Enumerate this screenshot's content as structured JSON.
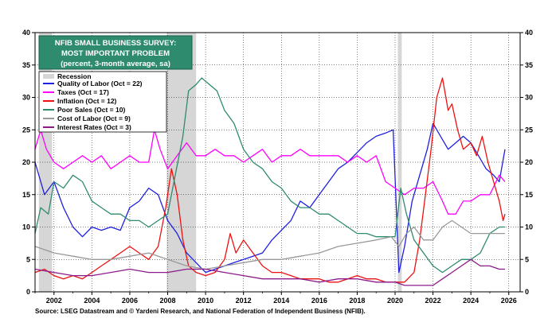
{
  "chart_data": {
    "type": "line",
    "title_lines": [
      "NFIB SMALL BUSINESS SURVEY:",
      "MOST IMPORTANT PROBLEM",
      "(percent, 3-month average, sa)"
    ],
    "source": "Source: LSEG Datastream and © Yardeni Research, and National Federation of Independent Business (NFIB).",
    "xlim": [
      2001.0,
      2026.6
    ],
    "ylim": [
      0,
      40
    ],
    "x_ticks": [
      2002,
      2004,
      2006,
      2008,
      2010,
      2012,
      2014,
      2016,
      2018,
      2020,
      2022,
      2024,
      2026
    ],
    "x_tick_labels": [
      "2002",
      "2004",
      "2006",
      "2008",
      "2010",
      "2012",
      "2014",
      "2016",
      "2018",
      "2020",
      "2022",
      "2024",
      "2026"
    ],
    "y_ticks": [
      0,
      5,
      10,
      15,
      20,
      25,
      30,
      35,
      40
    ],
    "y_tick_labels": [
      "0",
      "5",
      "10",
      "15",
      "20",
      "25",
      "30",
      "35",
      "40"
    ],
    "recession_label": "Recession",
    "recessions": [
      [
        2001.2,
        2001.9
      ],
      [
        2007.95,
        2009.5
      ],
      [
        2020.15,
        2020.35
      ]
    ],
    "series": [
      {
        "name": "Quality of Labor (Oct = 22)",
        "color": "#1f1fe0",
        "x": [
          2001.0,
          2001.5,
          2002.0,
          2002.5,
          2003.0,
          2003.5,
          2004.0,
          2004.5,
          2005.0,
          2005.5,
          2006.0,
          2006.5,
          2007.0,
          2007.5,
          2008.0,
          2008.5,
          2009.0,
          2009.5,
          2010.0,
          2010.5,
          2011.0,
          2011.5,
          2012.0,
          2012.5,
          2013.0,
          2013.5,
          2014.0,
          2014.5,
          2015.0,
          2015.5,
          2016.0,
          2016.5,
          2017.0,
          2017.5,
          2018.0,
          2018.5,
          2019.0,
          2019.5,
          2019.9,
          2020.2,
          2020.5,
          2020.9,
          2021.3,
          2021.7,
          2022.0,
          2022.4,
          2022.8,
          2023.2,
          2023.6,
          2024.0,
          2024.4,
          2024.8,
          2025.2,
          2025.5,
          2025.8
        ],
        "y": [
          20,
          15,
          17,
          13,
          10,
          8.5,
          10,
          9.5,
          10,
          9.5,
          13,
          14,
          16,
          15,
          11,
          9,
          6,
          4.5,
          3,
          3.5,
          4,
          4.5,
          5,
          5.5,
          6,
          8,
          9.5,
          11,
          14,
          13,
          15,
          17,
          19,
          20,
          21.5,
          23,
          24,
          24.5,
          25,
          3,
          7,
          14,
          18,
          22,
          26,
          24,
          22,
          23,
          24,
          23,
          21,
          19,
          18,
          17,
          22
        ]
      },
      {
        "name": "Taxes (Oct = 17)",
        "color": "#ff00ff",
        "x": [
          2001.0,
          2001.3,
          2001.6,
          2002.0,
          2002.5,
          2003.0,
          2003.5,
          2004.0,
          2004.5,
          2005.0,
          2005.5,
          2006.0,
          2006.5,
          2007.0,
          2007.3,
          2007.6,
          2008.0,
          2008.5,
          2009.0,
          2009.5,
          2010.0,
          2010.5,
          2011.0,
          2011.5,
          2012.0,
          2012.5,
          2013.0,
          2013.5,
          2014.0,
          2014.5,
          2015.0,
          2015.5,
          2016.0,
          2016.5,
          2017.0,
          2017.5,
          2018.0,
          2018.5,
          2019.0,
          2019.5,
          2020.0,
          2020.5,
          2021.0,
          2021.5,
          2022.0,
          2022.5,
          2022.8,
          2023.2,
          2023.6,
          2024.0,
          2024.5,
          2025.0,
          2025.5,
          2025.8
        ],
        "y": [
          22,
          25,
          22,
          20,
          19,
          20,
          21,
          20,
          21,
          19,
          20,
          21,
          20,
          20,
          25,
          22,
          19,
          21,
          23,
          21,
          21,
          22,
          21,
          21,
          20,
          21,
          22,
          20,
          21,
          21,
          22,
          21,
          21,
          21,
          21,
          20,
          21,
          20,
          21,
          17,
          16,
          15,
          16,
          16,
          17,
          14,
          12,
          12,
          14,
          14,
          15,
          15,
          18,
          17
        ]
      },
      {
        "name": "Inflation (Oct = 12)",
        "color": "#ee1111",
        "x": [
          2001.0,
          2001.5,
          2002.0,
          2002.5,
          2003.0,
          2003.5,
          2004.0,
          2004.5,
          2005.0,
          2005.5,
          2006.0,
          2006.5,
          2007.0,
          2007.5,
          2007.9,
          2008.2,
          2008.5,
          2008.8,
          2009.1,
          2009.5,
          2010.0,
          2010.5,
          2011.0,
          2011.3,
          2011.6,
          2012.0,
          2012.5,
          2013.0,
          2013.5,
          2014.0,
          2014.5,
          2015.0,
          2015.5,
          2016.0,
          2016.5,
          2017.0,
          2017.5,
          2018.0,
          2018.5,
          2019.0,
          2019.5,
          2020.0,
          2020.5,
          2021.0,
          2021.3,
          2021.6,
          2021.9,
          2022.2,
          2022.5,
          2022.8,
          2023.0,
          2023.3,
          2023.6,
          2024.0,
          2024.3,
          2024.6,
          2024.9,
          2025.2,
          2025.5,
          2025.7,
          2025.8
        ],
        "y": [
          3,
          3.5,
          2.5,
          2,
          2.5,
          2,
          3,
          4,
          5,
          6,
          7,
          6,
          5,
          7,
          13,
          19,
          15,
          8,
          4,
          3,
          2.5,
          3,
          5,
          9,
          6,
          8,
          6,
          4,
          3,
          3,
          2.5,
          2,
          2,
          2,
          1.5,
          1.5,
          2,
          2.5,
          2,
          2,
          1.5,
          1.5,
          1.5,
          3,
          8,
          15,
          22,
          30,
          33,
          28,
          29,
          25,
          22,
          23,
          21,
          24,
          20,
          17,
          14,
          11,
          12
        ]
      },
      {
        "name": "Poor Sales (Oct = 10)",
        "color": "#2e8b6e",
        "x": [
          2001.0,
          2001.3,
          2001.7,
          2002.0,
          2002.5,
          2003.0,
          2003.5,
          2004.0,
          2004.5,
          2005.0,
          2005.5,
          2006.0,
          2006.5,
          2007.0,
          2007.5,
          2008.0,
          2008.4,
          2008.8,
          2009.1,
          2009.5,
          2009.8,
          2010.2,
          2010.6,
          2011.0,
          2011.5,
          2012.0,
          2012.5,
          2013.0,
          2013.5,
          2014.0,
          2014.5,
          2015.0,
          2015.5,
          2016.0,
          2016.5,
          2017.0,
          2017.5,
          2018.0,
          2018.5,
          2019.0,
          2019.5,
          2020.0,
          2020.3,
          2020.6,
          2021.0,
          2021.5,
          2022.0,
          2022.5,
          2023.0,
          2023.5,
          2024.0,
          2024.5,
          2025.0,
          2025.5,
          2025.8
        ],
        "y": [
          9,
          13,
          12,
          17,
          16,
          18,
          17,
          14,
          13,
          12,
          12,
          11,
          11,
          10,
          11,
          12,
          18,
          24,
          31,
          32,
          33,
          32,
          31,
          28,
          26,
          22,
          20,
          19,
          17,
          16,
          14,
          13,
          13,
          12,
          12,
          11,
          10,
          9,
          9,
          8.5,
          8.5,
          8.5,
          16,
          12,
          8,
          6,
          4,
          3,
          4,
          5,
          5,
          6,
          9,
          10,
          10
        ]
      },
      {
        "name": "Cost of Labor (Oct = 9)",
        "color": "#999999",
        "x": [
          2001.0,
          2002.0,
          2003.0,
          2004.0,
          2005.0,
          2006.0,
          2007.0,
          2008.0,
          2009.0,
          2010.0,
          2011.0,
          2012.0,
          2013.0,
          2014.0,
          2015.0,
          2016.0,
          2017.0,
          2018.0,
          2019.0,
          2019.8,
          2020.2,
          2020.6,
          2021.0,
          2021.5,
          2022.0,
          2022.5,
          2023.0,
          2023.5,
          2024.0,
          2024.5,
          2025.0,
          2025.8
        ],
        "y": [
          7,
          6,
          5.5,
          5,
          5,
          5.5,
          6,
          5,
          4,
          3.5,
          4,
          4.5,
          5,
          5,
          5.5,
          6,
          7,
          7.5,
          8,
          8.5,
          7,
          9,
          10,
          8,
          8,
          10,
          11,
          10,
          9,
          9,
          9,
          9
        ]
      },
      {
        "name": "Interest Rates (Oct = 3)",
        "color": "#8b1a8b",
        "x": [
          2001.0,
          2002.0,
          2003.0,
          2004.0,
          2005.0,
          2006.0,
          2007.0,
          2008.0,
          2009.0,
          2010.0,
          2011.0,
          2012.0,
          2013.0,
          2014.0,
          2015.0,
          2016.0,
          2017.0,
          2018.0,
          2019.0,
          2020.0,
          2020.5,
          2021.0,
          2021.5,
          2022.0,
          2022.5,
          2023.0,
          2023.5,
          2024.0,
          2024.5,
          2025.0,
          2025.5,
          2025.8
        ],
        "y": [
          3.5,
          3,
          2.5,
          2.5,
          3,
          3.5,
          3,
          3,
          3.5,
          3.5,
          3,
          2.5,
          2,
          2,
          2,
          1.5,
          2,
          2,
          1.5,
          1.5,
          1,
          1,
          1,
          1,
          2,
          3,
          4,
          5,
          4,
          4,
          3.5,
          3.5
        ]
      }
    ]
  }
}
